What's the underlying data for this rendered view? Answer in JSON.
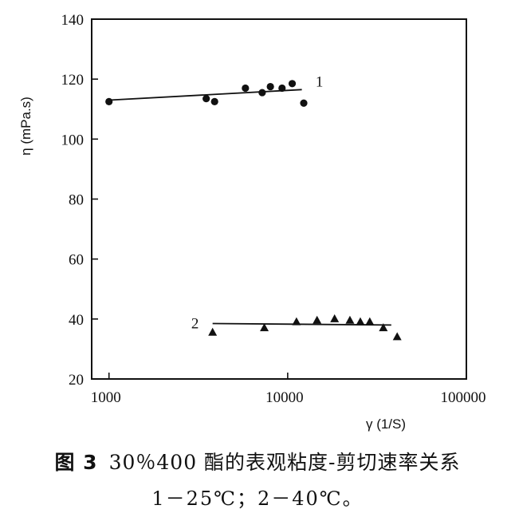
{
  "chart_data": {
    "type": "scatter",
    "x_scale": "log",
    "xlim": [
      800,
      100000
    ],
    "ylim": [
      20,
      140
    ],
    "x_ticks": [
      "1000",
      "10000",
      "100000"
    ],
    "y_ticks": [
      "20",
      "40",
      "60",
      "80",
      "100",
      "120",
      "140"
    ],
    "xlabel": "γ (1/S)",
    "ylabel": "η (mPa.s)",
    "grid": false,
    "series": [
      {
        "name": "1",
        "marker": "circle",
        "x": [
          1000,
          3500,
          3900,
          5800,
          7200,
          8000,
          9300,
          10600,
          12300
        ],
        "y": [
          112.5,
          113.5,
          112.5,
          117,
          115.5,
          117.5,
          117,
          118.5,
          112
        ],
        "fit": [
          [
            1000,
            113
          ],
          [
            12000,
            116.5
          ]
        ]
      },
      {
        "name": "2",
        "marker": "triangle",
        "x": [
          3800,
          7400,
          11200,
          14600,
          18300,
          22300,
          25500,
          28800,
          34300,
          41000
        ],
        "y": [
          35.5,
          37,
          39,
          39.5,
          40,
          39.5,
          39,
          39,
          37,
          34
        ],
        "fit": [
          [
            3800,
            38.5
          ],
          [
            38000,
            38
          ]
        ]
      }
    ]
  },
  "caption": {
    "figure_number": "图 3",
    "title": "30％400 酯的表观粘度-剪切速率关系",
    "legend_line": "1－25℃；2－40℃。"
  }
}
